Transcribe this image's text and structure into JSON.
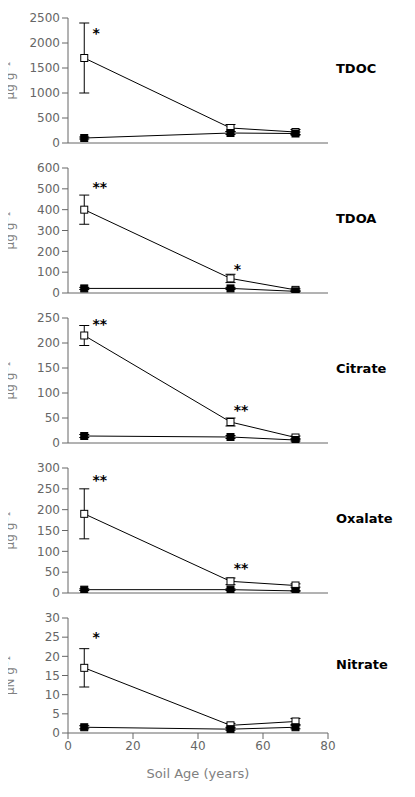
{
  "chart_data": [
    {
      "type": "line",
      "title": "TDOC",
      "ylabel": "μg g⁻¹",
      "x": [
        5,
        50,
        70
      ],
      "xlim": [
        0,
        80
      ],
      "xticks": [
        0,
        20,
        40,
        60,
        80
      ],
      "ylim": [
        0,
        2500
      ],
      "yticks": [
        0,
        500,
        1000,
        1500,
        2000,
        2500
      ],
      "grid": false,
      "tick_labels": "y",
      "series": [
        {
          "color": "white",
          "marker": "square",
          "values": [
            1700,
            300,
            220
          ],
          "errors": [
            700,
            70,
            50
          ]
        },
        {
          "color": "black",
          "marker": "square",
          "values": [
            100,
            200,
            190
          ],
          "errors": [
            20,
            30,
            30
          ]
        }
      ],
      "annotations": [
        {
          "x": 7.5,
          "y": 2200,
          "text": "*"
        }
      ]
    },
    {
      "type": "line",
      "title": "TDOA",
      "ylabel": "μg g⁻¹",
      "x": [
        5,
        50,
        70
      ],
      "xlim": [
        0,
        80
      ],
      "xticks": [
        0,
        20,
        40,
        60,
        80
      ],
      "ylim": [
        0,
        600
      ],
      "yticks": [
        0,
        100,
        200,
        300,
        400,
        500,
        600
      ],
      "grid": false,
      "tick_labels": "y",
      "series": [
        {
          "color": "white",
          "marker": "square",
          "values": [
            400,
            70,
            15
          ],
          "errors": [
            70,
            20,
            5
          ]
        },
        {
          "color": "black",
          "marker": "square",
          "values": [
            22,
            22,
            8
          ],
          "errors": [
            5,
            5,
            2
          ]
        }
      ],
      "annotations": [
        {
          "x": 7.5,
          "y": 510,
          "text": "**"
        },
        {
          "x": 51,
          "y": 115,
          "text": "*"
        }
      ]
    },
    {
      "type": "line",
      "title": "Citrate",
      "ylabel": "μg g⁻¹",
      "x": [
        5,
        50,
        70
      ],
      "xlim": [
        0,
        80
      ],
      "xticks": [
        0,
        20,
        40,
        60,
        80
      ],
      "ylim": [
        0,
        250
      ],
      "yticks": [
        0,
        50,
        100,
        150,
        200,
        250
      ],
      "grid": false,
      "tick_labels": "y",
      "series": [
        {
          "color": "white",
          "marker": "square",
          "values": [
            215,
            42,
            11
          ],
          "errors": [
            20,
            8,
            3
          ]
        },
        {
          "color": "black",
          "marker": "square",
          "values": [
            14,
            12,
            6
          ],
          "errors": [
            3,
            3,
            2
          ]
        }
      ],
      "annotations": [
        {
          "x": 7.5,
          "y": 238,
          "text": "**"
        },
        {
          "x": 51,
          "y": 66,
          "text": "**"
        }
      ]
    },
    {
      "type": "line",
      "title": "Oxalate",
      "ylabel": "μg g⁻¹",
      "x": [
        5,
        50,
        70
      ],
      "xlim": [
        0,
        80
      ],
      "xticks": [
        0,
        20,
        40,
        60,
        80
      ],
      "ylim": [
        0,
        300
      ],
      "yticks": [
        0,
        50,
        100,
        150,
        200,
        250,
        300
      ],
      "grid": false,
      "tick_labels": "y",
      "series": [
        {
          "color": "white",
          "marker": "square",
          "values": [
            190,
            28,
            18
          ],
          "errors": [
            60,
            8,
            4
          ]
        },
        {
          "color": "black",
          "marker": "square",
          "values": [
            8,
            8,
            5
          ],
          "errors": [
            2,
            2,
            1
          ]
        }
      ],
      "annotations": [
        {
          "x": 7.5,
          "y": 272,
          "text": "**"
        },
        {
          "x": 51,
          "y": 60,
          "text": "**"
        }
      ]
    },
    {
      "type": "line",
      "title": "Nitrate",
      "ylabel": "μN g⁻¹",
      "xlabel": "Soil Age (years)",
      "x": [
        5,
        50,
        70
      ],
      "xlim": [
        0,
        80
      ],
      "xticks": [
        0,
        20,
        40,
        60,
        80
      ],
      "ylim": [
        0,
        30
      ],
      "yticks": [
        0,
        5,
        10,
        15,
        20,
        25,
        30
      ],
      "grid": false,
      "series": [
        {
          "color": "white",
          "marker": "square",
          "values": [
            17,
            2,
            3
          ],
          "errors": [
            5,
            0.5,
            0.8
          ]
        },
        {
          "color": "black",
          "marker": "square",
          "values": [
            1.5,
            1.0,
            1.5
          ],
          "errors": [
            0.4,
            0.3,
            0.4
          ]
        }
      ],
      "annotations": [
        {
          "x": 7.5,
          "y": 25,
          "text": "*"
        }
      ]
    }
  ]
}
